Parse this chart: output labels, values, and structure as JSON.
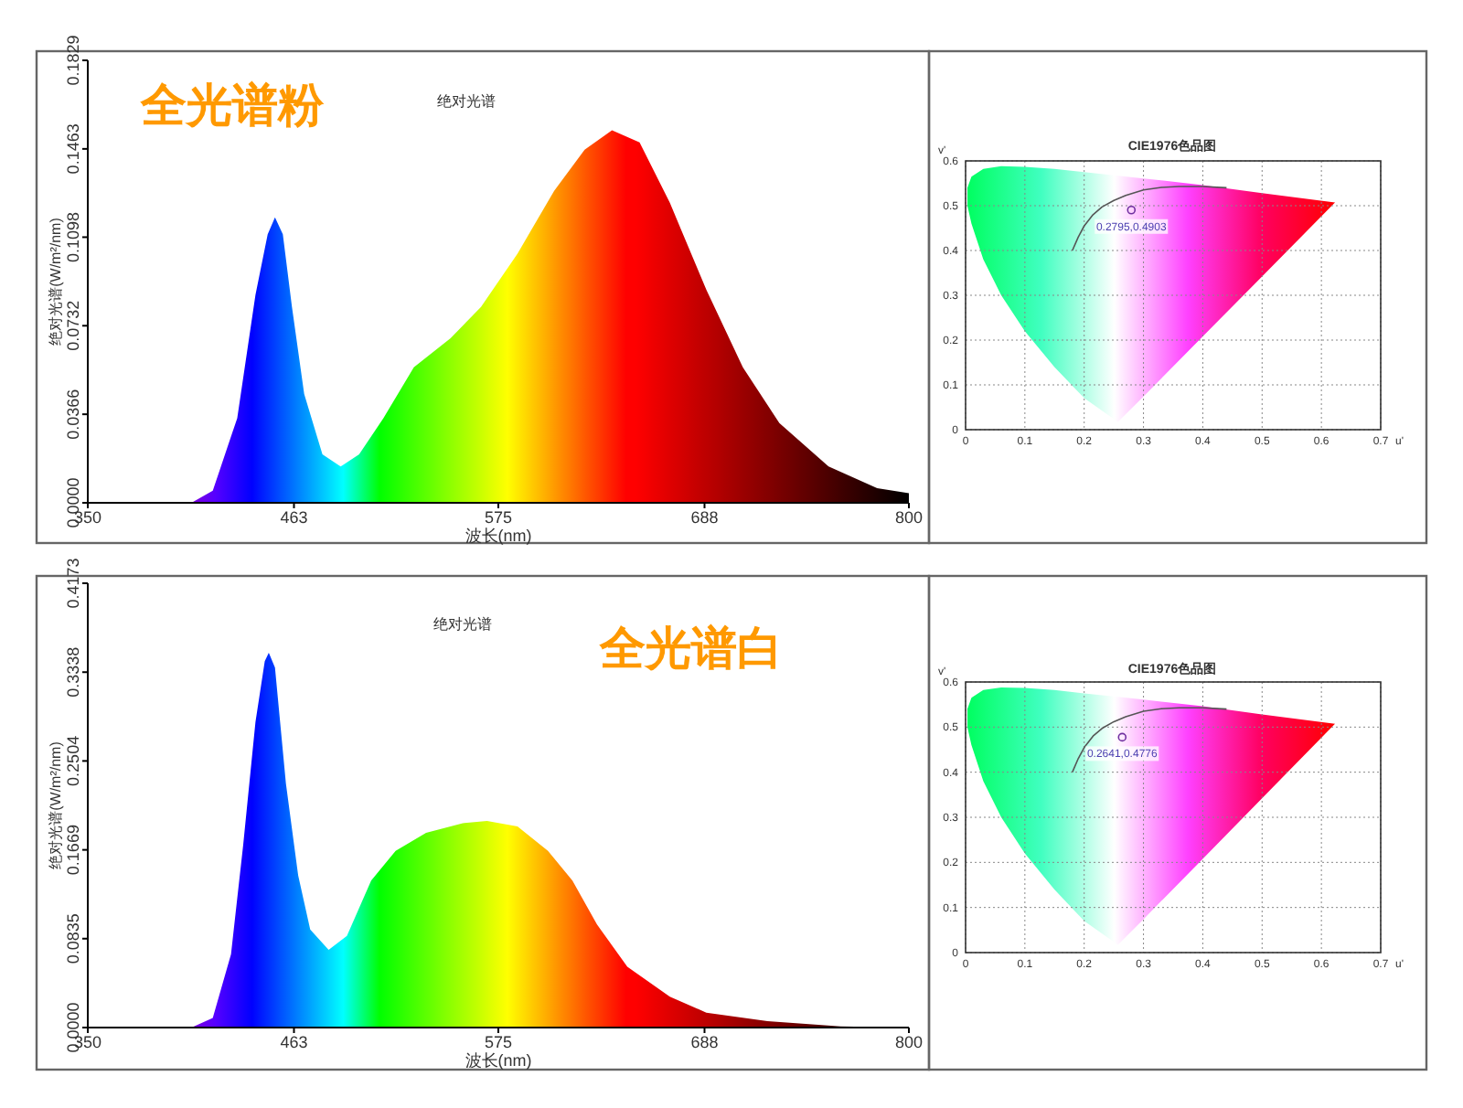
{
  "chart_data": [
    {
      "type": "area",
      "title": "绝对光谱",
      "subtitle": "全光谱粉",
      "xlabel": "波长(nm)",
      "ylabel": "绝对光谱(W/m²/nm)",
      "xlim": [
        350,
        800
      ],
      "ylim": [
        0,
        0.1829
      ],
      "xticks": [
        350,
        463,
        575,
        688,
        800
      ],
      "yticks": [
        {
          "value": 0,
          "label": "0.0000"
        },
        0.0366,
        0.0732,
        0.1098,
        0.1463,
        0.1829
      ],
      "x": [
        350,
        406.8,
        418.5,
        431.9,
        441.9,
        448.6,
        452.6,
        456.9,
        461.9,
        468.6,
        478.6,
        488.6,
        498.7,
        512,
        528.7,
        548.8,
        565.5,
        585.5,
        605.6,
        622.3,
        637.3,
        652.4,
        669,
        689,
        709,
        729,
        756,
        782.6,
        800
      ],
      "values": [
        0,
        0,
        0.005,
        0.035,
        0.086,
        0.111,
        0.118,
        0.111,
        0.081,
        0.045,
        0.02,
        0.015,
        0.02,
        0.035,
        0.056,
        0.068,
        0.081,
        0.103,
        0.129,
        0.146,
        0.154,
        0.149,
        0.124,
        0.088,
        0.056,
        0.033,
        0.015,
        0.006,
        0.004
      ]
    },
    {
      "type": "scatter",
      "title": "CIE1976色品图",
      "xlabel": "u'",
      "ylabel": "v'",
      "xlim": [
        0,
        0.7
      ],
      "ylim": [
        0,
        0.6
      ],
      "xticks": [
        0,
        0.1,
        0.2,
        0.3,
        0.4,
        0.5,
        0.6,
        0.7
      ],
      "yticks": [
        0,
        0.1,
        0.2,
        0.3,
        0.4,
        0.5,
        0.6
      ],
      "grid": true,
      "series": [
        {
          "type": "area",
          "x": [
            0.003,
            0.01,
            0.03,
            0.06,
            0.1,
            0.15,
            0.2,
            0.257,
            0.3,
            0.4,
            0.5,
            0.623
          ],
          "values": [
            0.54,
            0.565,
            0.582,
            0.588,
            0.587,
            0.582,
            0.575,
            0.567,
            0.561,
            0.546,
            0.528,
            0.507
          ]
        },
        {
          "type": "area",
          "color": "#ffffff",
          "x": [
            0.003,
            0.01,
            0.03,
            0.06,
            0.1,
            0.15,
            0.2,
            0.257,
            0.3,
            0.4,
            0.5,
            0.623
          ],
          "values": [
            0.5,
            0.46,
            0.38,
            0.3,
            0.22,
            0.14,
            0.07,
            0.017,
            0.074,
            0.208,
            0.342,
            0.507
          ]
        },
        {
          "type": "line",
          "color": "#555555",
          "x": [
            0.18,
            0.19,
            0.2,
            0.215,
            0.23,
            0.25,
            0.27,
            0.3,
            0.33,
            0.36,
            0.4,
            0.44
          ],
          "values": [
            0.4,
            0.43,
            0.455,
            0.48,
            0.497,
            0.512,
            0.523,
            0.535,
            0.541,
            0.543,
            0.543,
            0.54
          ]
        },
        {
          "type": "scatter",
          "color": "#7030a0",
          "marker": "circle",
          "x": [
            0.2795
          ],
          "values": [
            0.4903
          ]
        }
      ],
      "annotations": [
        {
          "text": "0.2795,0.4903",
          "x": 0.2795,
          "y": 0.4903
        }
      ]
    },
    {
      "type": "area",
      "title": "绝对光谱",
      "subtitle": "全光谱白",
      "xlabel": "波长(nm)",
      "ylabel": "绝对光谱(W/m²/nm)",
      "xlim": [
        350,
        800
      ],
      "ylim": [
        0,
        0.4173
      ],
      "xticks": [
        350,
        463,
        575,
        688,
        800
      ],
      "yticks": [
        {
          "value": 0,
          "label": "0.0000"
        },
        0.0835,
        0.1669,
        0.2504,
        0.3338,
        0.4173
      ],
      "x": [
        350,
        406.8,
        418.5,
        428.5,
        435.2,
        441.9,
        447,
        449.2,
        452.6,
        458.6,
        465.3,
        471.9,
        482,
        492,
        505.3,
        518.7,
        535.4,
        555.5,
        568.8,
        585.5,
        602.2,
        615.6,
        629,
        645.7,
        669,
        689,
        722.5,
        762.6,
        800
      ],
      "values": [
        0,
        0,
        0.009,
        0.069,
        0.172,
        0.287,
        0.344,
        0.352,
        0.338,
        0.229,
        0.143,
        0.092,
        0.073,
        0.086,
        0.138,
        0.166,
        0.183,
        0.192,
        0.194,
        0.189,
        0.166,
        0.138,
        0.097,
        0.057,
        0.029,
        0.014,
        0.006,
        0.001,
        0
      ]
    },
    {
      "type": "scatter",
      "title": "CIE1976色品图",
      "xlabel": "u'",
      "ylabel": "v'",
      "xlim": [
        0,
        0.7
      ],
      "ylim": [
        0,
        0.6
      ],
      "xticks": [
        0,
        0.1,
        0.2,
        0.3,
        0.4,
        0.5,
        0.6,
        0.7
      ],
      "yticks": [
        0,
        0.1,
        0.2,
        0.3,
        0.4,
        0.5,
        0.6
      ],
      "grid": true,
      "series": [
        {
          "type": "area",
          "x": [
            0.003,
            0.01,
            0.03,
            0.06,
            0.1,
            0.15,
            0.2,
            0.257,
            0.3,
            0.4,
            0.5,
            0.623
          ],
          "values": [
            0.54,
            0.565,
            0.582,
            0.588,
            0.587,
            0.582,
            0.575,
            0.567,
            0.561,
            0.546,
            0.528,
            0.507
          ]
        },
        {
          "type": "area",
          "color": "#ffffff",
          "x": [
            0.003,
            0.01,
            0.03,
            0.06,
            0.1,
            0.15,
            0.2,
            0.257,
            0.3,
            0.4,
            0.5,
            0.623
          ],
          "values": [
            0.5,
            0.46,
            0.38,
            0.3,
            0.22,
            0.14,
            0.07,
            0.017,
            0.074,
            0.208,
            0.342,
            0.507
          ]
        },
        {
          "type": "line",
          "color": "#555555",
          "x": [
            0.18,
            0.19,
            0.2,
            0.215,
            0.23,
            0.25,
            0.27,
            0.3,
            0.33,
            0.36,
            0.4,
            0.44
          ],
          "values": [
            0.4,
            0.43,
            0.455,
            0.48,
            0.497,
            0.512,
            0.523,
            0.535,
            0.541,
            0.543,
            0.543,
            0.54
          ]
        },
        {
          "type": "scatter",
          "color": "#7030a0",
          "marker": "circle",
          "x": [
            0.2641
          ],
          "values": [
            0.4776
          ]
        }
      ],
      "annotations": [
        {
          "text": "0.2641,0.4776",
          "x": 0.2641,
          "y": 0.4776
        }
      ]
    }
  ]
}
